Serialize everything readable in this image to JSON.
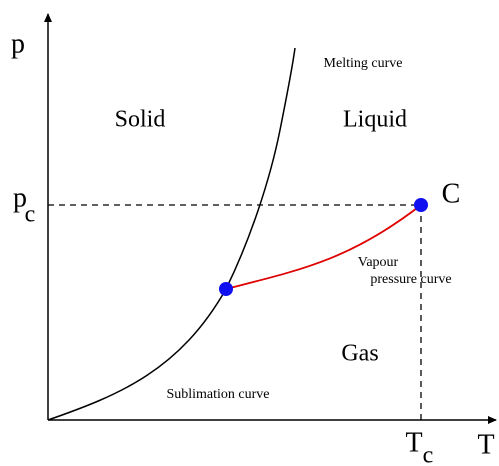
{
  "axes": {
    "y": "p",
    "x": "T"
  },
  "critical": {
    "p_symbol": "p",
    "p_subscript": "c",
    "T_symbol": "T",
    "T_subscript": "c",
    "point": "C"
  },
  "regions": {
    "solid": "Solid",
    "liquid": "Liquid",
    "gas": "Gas"
  },
  "curves": {
    "melting": "Melting curve",
    "vapour_line1": "Vapour",
    "vapour_line2": "pressure curve",
    "sublimation": "Sublimation curve"
  }
}
